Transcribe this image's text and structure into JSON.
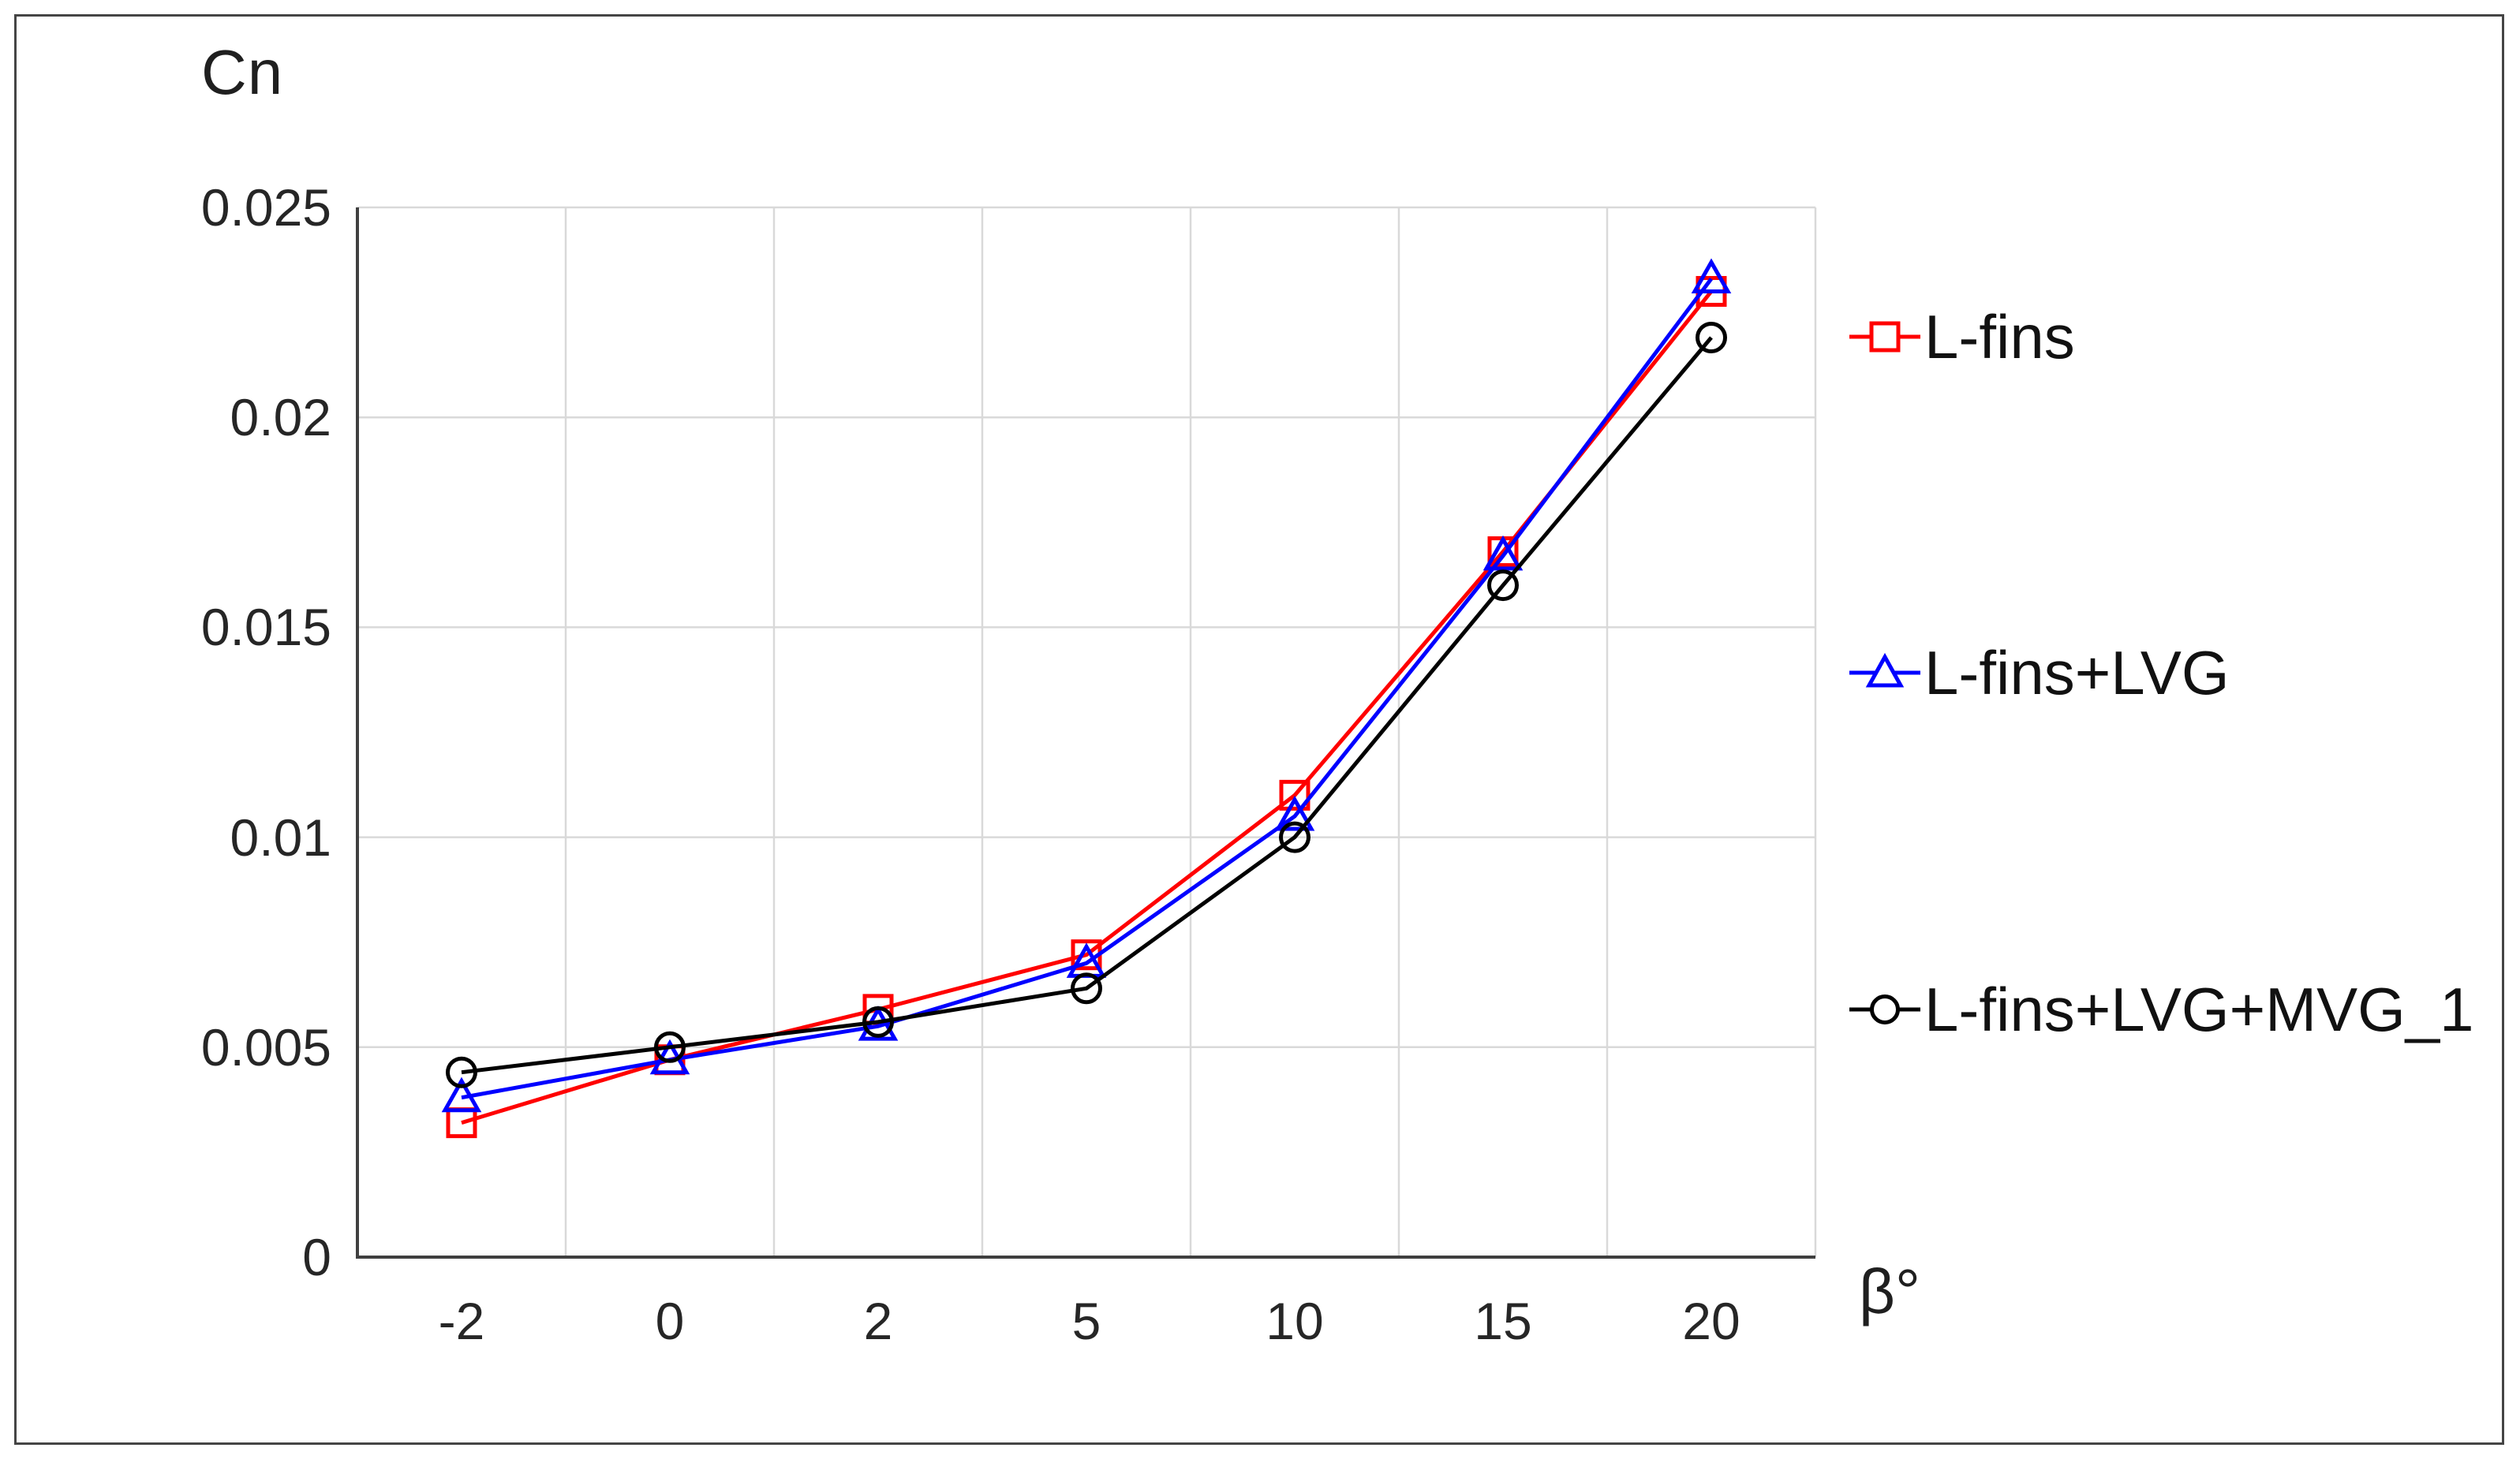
{
  "figure": {
    "background": "#ffffff",
    "border_color": "#454545"
  },
  "chart_data": {
    "type": "line",
    "title": "Cn",
    "ylabel": "Cn",
    "xlabel": "β°",
    "categories": [
      "-2",
      "0",
      "2",
      "5",
      "10",
      "15",
      "20"
    ],
    "x_tick_labels": [
      "-2",
      "0",
      "2",
      "5",
      "10",
      "15",
      "20"
    ],
    "y_tick_labels": [
      "0",
      "0.005",
      "0.01",
      "0.015",
      "0.02",
      "0.025"
    ],
    "ylim": [
      0,
      0.025
    ],
    "y_step": 0.005,
    "grid": true,
    "legend_position": "right",
    "series": [
      {
        "name": "L-fins",
        "color": "#ff0000",
        "marker": "square",
        "values": [
          0.0032,
          0.0047,
          0.0059,
          0.0072,
          0.011,
          0.0168,
          0.023
        ]
      },
      {
        "name": "L-fins+LVG",
        "color": "#0000ff",
        "marker": "triangle",
        "values": [
          0.0038,
          0.0047,
          0.0055,
          0.007,
          0.0105,
          0.0167,
          0.0233
        ]
      },
      {
        "name": "L-fins+LVG+MVG_1",
        "color": "#000000",
        "marker": "circle",
        "values": [
          0.0044,
          0.005,
          0.0056,
          0.0064,
          0.01,
          0.016,
          0.0219
        ]
      }
    ],
    "colors": {
      "gridline": "#d9d9d9",
      "axis": "#404040",
      "tick_text": "#262626"
    }
  }
}
